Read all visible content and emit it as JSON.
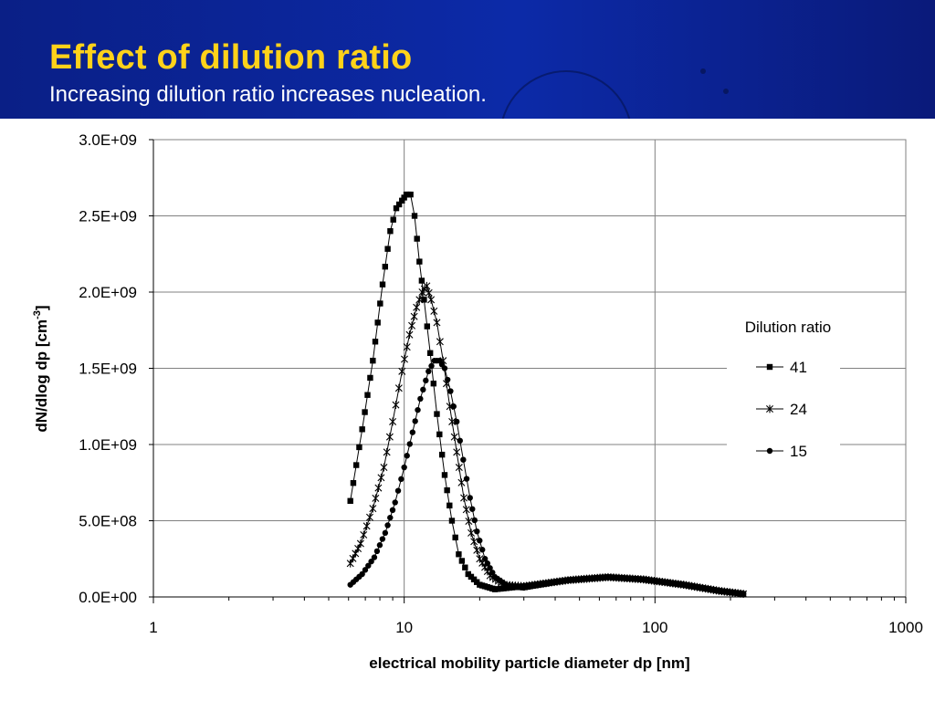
{
  "slide": {
    "title": "Effect of dilution ratio",
    "subtitle": "Increasing dilution ratio increases nucleation."
  },
  "colors": {
    "header_bg": "#0c2aa8",
    "title": "#ffd21a",
    "subtitle": "#ffffff",
    "series": "#000000"
  },
  "chart_data": {
    "type": "scatter",
    "x_scale": "log",
    "xlim": [
      1,
      1000
    ],
    "ylim": [
      0,
      3000000000
    ],
    "xlabel": "electrical mobility particle diameter dp [nm]",
    "ylabel": "dN/dlog dp [cm",
    "ylabel_sup": "-3",
    "ylabel_end": "]",
    "xticks": [
      "1",
      "10",
      "100",
      "1000"
    ],
    "yticks": [
      "0.0E+00",
      "5.0E+08",
      "1.0E+09",
      "1.5E+09",
      "2.0E+09",
      "2.5E+09",
      "3.0E+09"
    ],
    "grid": true,
    "legend": {
      "title": "Dilution ratio",
      "position": "right"
    },
    "series": [
      {
        "name": "41",
        "marker": "square",
        "points": [
          [
            6.1,
            630000000.0
          ],
          [
            6.8,
            1100000000.0
          ],
          [
            7.5,
            1550000000.0
          ],
          [
            8.2,
            2050000000.0
          ],
          [
            8.8,
            2400000000.0
          ],
          [
            9.3,
            2550000000.0
          ],
          [
            9.8,
            2600000000.0
          ],
          [
            10.2,
            2640000000.0
          ],
          [
            10.6,
            2640000000.0
          ],
          [
            11.0,
            2500000000.0
          ],
          [
            11.5,
            2200000000.0
          ],
          [
            12.0,
            1950000000.0
          ],
          [
            12.7,
            1600000000.0
          ],
          [
            13.5,
            1200000000.0
          ],
          [
            14.5,
            800000000.0
          ],
          [
            15.5,
            500000000.0
          ],
          [
            16.5,
            280000000.0
          ],
          [
            18,
            150000000.0
          ],
          [
            20,
            80000000.0
          ],
          [
            23,
            50000000.0
          ],
          [
            30,
            70000000.0
          ],
          [
            45,
            110000000.0
          ],
          [
            65,
            130000000.0
          ],
          [
            90,
            115000000.0
          ],
          [
            130,
            80000000.0
          ],
          [
            180,
            40000000.0
          ],
          [
            225,
            20000000.0
          ]
        ]
      },
      {
        "name": "24",
        "marker": "star",
        "points": [
          [
            6.1,
            220000000.0
          ],
          [
            6.7,
            350000000.0
          ],
          [
            7.5,
            580000000.0
          ],
          [
            8.3,
            850000000.0
          ],
          [
            9.0,
            1150000000.0
          ],
          [
            9.8,
            1480000000.0
          ],
          [
            10.5,
            1720000000.0
          ],
          [
            11.2,
            1900000000.0
          ],
          [
            11.8,
            2000000000.0
          ],
          [
            12.3,
            2040000000.0
          ],
          [
            12.8,
            1950000000.0
          ],
          [
            13.5,
            1800000000.0
          ],
          [
            14.3,
            1550000000.0
          ],
          [
            15.2,
            1250000000.0
          ],
          [
            16.2,
            950000000.0
          ],
          [
            17.3,
            650000000.0
          ],
          [
            18.5,
            420000000.0
          ],
          [
            20,
            250000000.0
          ],
          [
            22,
            140000000.0
          ],
          [
            25,
            80000000.0
          ],
          [
            30,
            70000000.0
          ],
          [
            45,
            110000000.0
          ],
          [
            65,
            130000000.0
          ],
          [
            90,
            115000000.0
          ],
          [
            130,
            80000000.0
          ],
          [
            180,
            40000000.0
          ],
          [
            225,
            20000000.0
          ]
        ]
      },
      {
        "name": "15",
        "marker": "circle",
        "points": [
          [
            6.1,
            80000000.0
          ],
          [
            6.8,
            150000000.0
          ],
          [
            7.6,
            260000000.0
          ],
          [
            8.4,
            420000000.0
          ],
          [
            9.2,
            620000000.0
          ],
          [
            10.0,
            850000000.0
          ],
          [
            10.8,
            1080000000.0
          ],
          [
            11.6,
            1300000000.0
          ],
          [
            12.5,
            1480000000.0
          ],
          [
            13.2,
            1550000000.0
          ],
          [
            13.8,
            1550000000.0
          ],
          [
            14.5,
            1500000000.0
          ],
          [
            15.3,
            1350000000.0
          ],
          [
            16.2,
            1150000000.0
          ],
          [
            17.2,
            900000000.0
          ],
          [
            18.3,
            650000000.0
          ],
          [
            19.5,
            430000000.0
          ],
          [
            21,
            250000000.0
          ],
          [
            23,
            130000000.0
          ],
          [
            26,
            70000000.0
          ],
          [
            30,
            60000000.0
          ],
          [
            45,
            110000000.0
          ],
          [
            65,
            130000000.0
          ],
          [
            90,
            115000000.0
          ],
          [
            130,
            80000000.0
          ],
          [
            180,
            40000000.0
          ],
          [
            225,
            20000000.0
          ]
        ]
      }
    ]
  }
}
